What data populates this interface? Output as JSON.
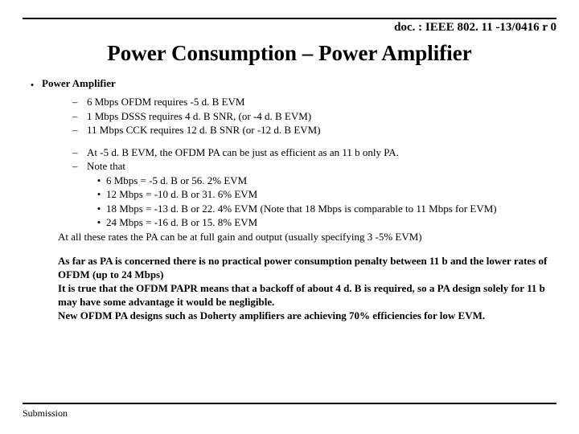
{
  "doc_id": "doc. : IEEE 802. 11 -13/0416 r 0",
  "title": "Power Consumption – Power Amplifier",
  "section_heading": "Power Amplifier",
  "requirements": [
    "6 Mbps OFDM requires -5 d. B EVM",
    "1 Mbps DSSS requires 4 d. B SNR, (or -4 d. B EVM)",
    "11 Mbps CCK requires 12 d. B SNR (or -12 d. B EVM)"
  ],
  "observation_1": "At -5 d. B EVM, the OFDM PA can be just as efficient as an 11 b only PA.",
  "note_label": "Note that",
  "notes": [
    "6 Mbps = -5 d. B or 56. 2% EVM",
    "12 Mbps = -10 d. B or 31. 6% EVM",
    "18 Mbps = -13 d. B or  22. 4% EVM (Note that 18 Mbps is comparable to 11 Mbps for EVM)",
    "24 Mbps = -16 d. B or 15. 8% EVM"
  ],
  "tail_note": "At all these rates the PA can be at full gain and output (usually specifying 3 -5% EVM)",
  "conclusions": [
    "As far as PA is concerned there is no practical power consumption penalty between 11 b and the lower rates of OFDM (up to 24 Mbps)",
    "It is true that the OFDM PAPR means that a backoff of about 4 d. B is required,  so a PA design solely for 11 b may have some advantage it would be negligible.",
    "New OFDM PA designs such as Doherty amplifiers are achieving 70% efficiencies for low EVM."
  ],
  "footer": "Submission"
}
